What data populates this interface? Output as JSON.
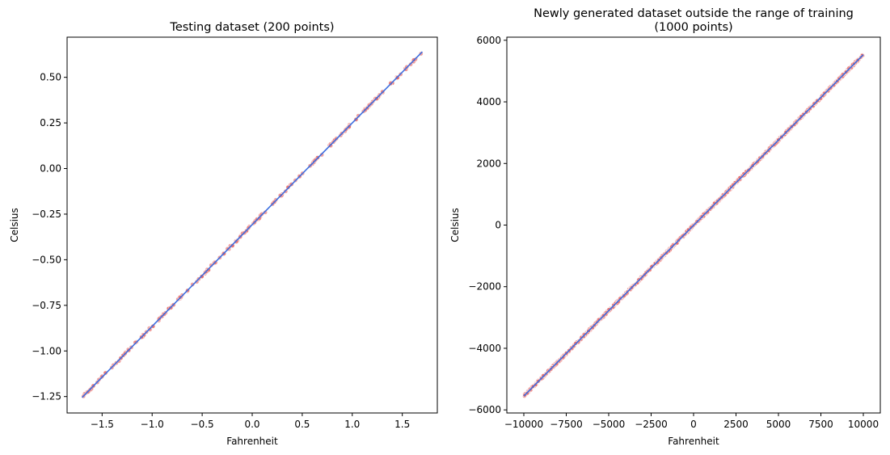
{
  "colors": {
    "line": "#3d6fe0",
    "points": "#e8635f",
    "axes": "#000000",
    "background": "#ffffff"
  },
  "chart_data": [
    {
      "type": "scatter",
      "title_lines": [
        "Testing dataset (200 points)"
      ],
      "xlabel": "Fahrenheit",
      "ylabel": "Celsius",
      "xlim": [
        -1.85,
        1.85
      ],
      "ylim": [
        -1.34,
        0.72
      ],
      "xticks": [
        -1.5,
        -1.0,
        -0.5,
        0.0,
        0.5,
        1.0,
        1.5
      ],
      "xtick_labels": [
        "−1.5",
        "−1.0",
        "−0.5",
        "0.0",
        "0.5",
        "1.0",
        "1.5"
      ],
      "yticks": [
        -1.25,
        -1.0,
        -0.75,
        -0.5,
        -0.25,
        0.0,
        0.25,
        0.5
      ],
      "ytick_labels": [
        "−1.25",
        "−1.00",
        "−0.75",
        "−0.50",
        "−0.25",
        "0.00",
        "0.25",
        "0.50"
      ],
      "grid": false,
      "series": [
        {
          "kind": "points",
          "points_count": 200,
          "x_range": [
            -1.7,
            1.7
          ],
          "y_range": [
            -1.255,
            0.64
          ]
        },
        {
          "kind": "line",
          "x": [
            -1.7,
            1.7
          ],
          "y": [
            -1.255,
            0.64
          ]
        }
      ]
    },
    {
      "type": "scatter",
      "title_lines": [
        "Newly generated dataset outside the range of training",
        "(1000 points)"
      ],
      "xlabel": "Fahrenheit",
      "ylabel": "Celsius",
      "xlim": [
        -11000,
        11000
      ],
      "ylim": [
        -6100,
        6100
      ],
      "xticks": [
        -10000,
        -7500,
        -5000,
        -2500,
        0,
        2500,
        5000,
        7500,
        10000
      ],
      "xtick_labels": [
        "−10000",
        "−7500",
        "−5000",
        "−2500",
        "0",
        "2500",
        "5000",
        "7500",
        "10000"
      ],
      "yticks": [
        -6000,
        -4000,
        -2000,
        0,
        2000,
        4000,
        6000
      ],
      "ytick_labels": [
        "−6000",
        "−4000",
        "−2000",
        "0",
        "2000",
        "4000",
        "6000"
      ],
      "grid": false,
      "series": [
        {
          "kind": "points",
          "points_count": 1000,
          "x_range": [
            -10000,
            10000
          ],
          "y_range": [
            -5550,
            5530
          ]
        },
        {
          "kind": "line",
          "x": [
            -10000,
            10000
          ],
          "y": [
            -5550,
            5530
          ]
        }
      ]
    }
  ]
}
